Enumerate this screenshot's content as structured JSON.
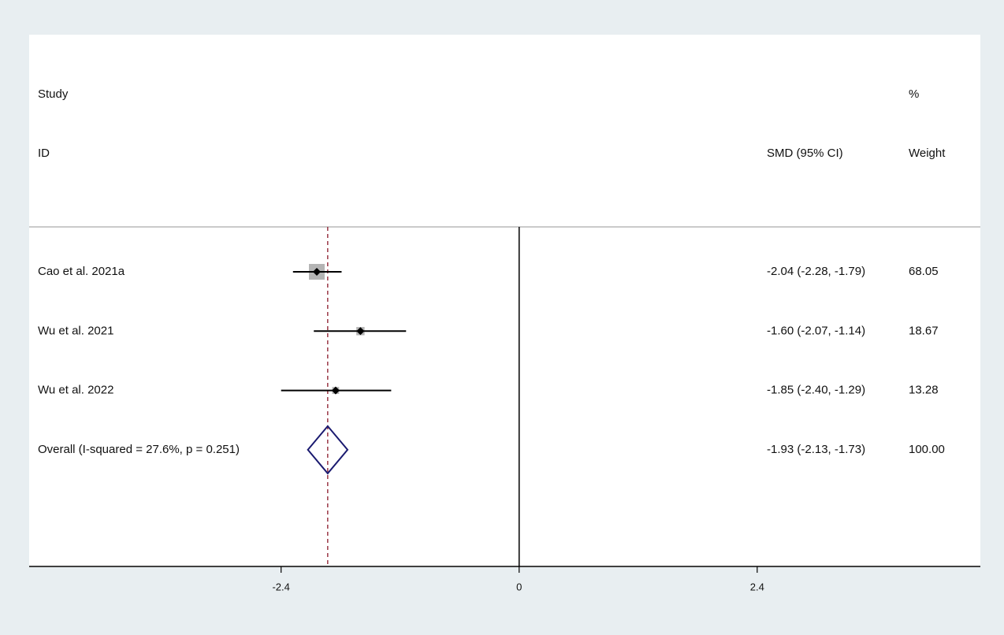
{
  "chart_data": {
    "type": "forest",
    "headers": {
      "study": "Study",
      "id": "ID",
      "ci": "SMD (95% CI)",
      "pct": "%",
      "weight": "Weight"
    },
    "categories": [
      "Cao et al. 2021a",
      "Wu et al. 2021",
      "Wu et al. 2022",
      "Overall  (I-squared = 27.6%, p = 0.251)"
    ],
    "values": [
      -2.04,
      -1.6,
      -1.85,
      -1.93
    ],
    "lower": [
      -2.28,
      -2.07,
      -2.4,
      -2.13
    ],
    "upper": [
      -1.79,
      -1.14,
      -1.29,
      -1.73
    ],
    "value_labels": [
      "-2.04 (-2.28, -1.79)",
      "-1.60 (-2.07, -1.14)",
      "-1.85 (-2.40, -1.29)",
      "-1.93 (-2.13, -1.73)"
    ],
    "weights": [
      68.05,
      18.67,
      13.28,
      100
    ],
    "weight_labels": [
      "68.05",
      "18.67",
      "13.28",
      "100.00"
    ],
    "xlim": [
      -4.94,
      4.65
    ],
    "xticks": [
      -2.4,
      0,
      2.4
    ],
    "color": "#000000",
    "box_color": "#b4b4b4",
    "overall_color": "#1a1a70",
    "reference_line_color": "#8b1a2a"
  }
}
